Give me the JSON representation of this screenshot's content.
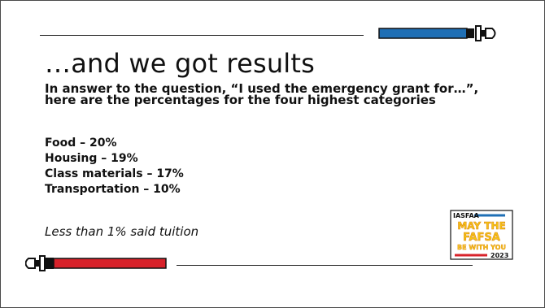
{
  "slide": {
    "title": "…and we got results",
    "intro_line1": "In answer to the question, “I used the emergency grant for…”,",
    "intro_line2": "here are the percentages for the four highest categories",
    "stats": [
      "Food – 20%",
      "Housing – 19%",
      "Class materials – 17%",
      "Transportation – 10%"
    ],
    "note": "Less than 1% said tuition"
  },
  "logo": {
    "org": "IASFAA",
    "line1": "MAY THE",
    "line2": "FAFSA",
    "line3": "BE WITH YOU",
    "year": "2023"
  },
  "colors": {
    "blue_saber": "#1f6fb5",
    "red_saber": "#d8222a",
    "logo_yellow": "#f5c518",
    "logo_orange": "#e08a12"
  },
  "icons": {
    "top": "blue-lightsaber-icon",
    "bottom": "red-lightsaber-icon"
  }
}
